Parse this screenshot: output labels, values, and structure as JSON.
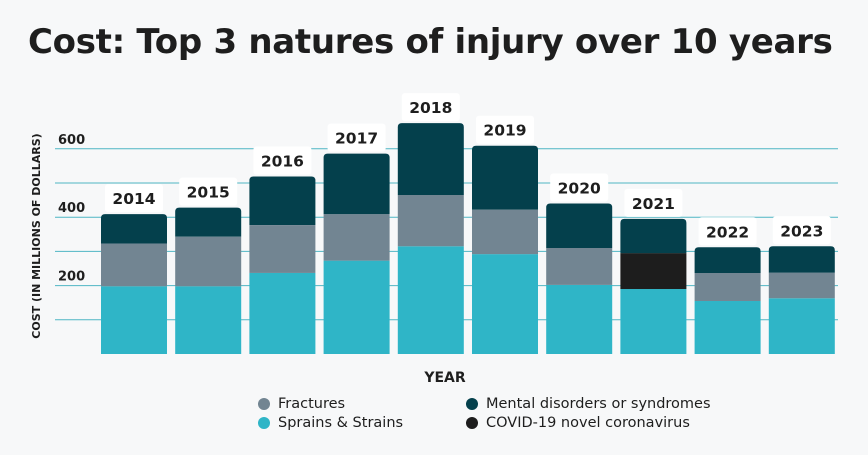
{
  "chart_data": {
    "type": "bar",
    "stacked": true,
    "title": "Cost: Top 3 natures of injury over 10 years",
    "xlabel": "YEAR",
    "ylabel": "COST (IN MILLIONS OF DOLLARS)",
    "ylim": [
      0,
      690
    ],
    "yticks": [
      200,
      400,
      600
    ],
    "grid": true,
    "legend_position": "bottom",
    "categories": [
      "2014",
      "2015",
      "2016",
      "2017",
      "2018",
      "2019",
      "2020",
      "2021",
      "2022",
      "2023"
    ],
    "series": [
      {
        "name": "Sprains & Strains",
        "color": "#2fb5c7",
        "values": [
          198,
          198,
          237,
          273,
          315,
          292,
          202,
          190,
          155,
          163
        ]
      },
      {
        "name": "Fractures",
        "color": "#728592",
        "values": [
          125,
          145,
          140,
          136,
          150,
          130,
          108,
          0,
          82,
          75
        ]
      },
      {
        "name": "Mental disorders or syndromes",
        "color": "#04404c",
        "values": [
          86,
          85,
          142,
          177,
          210,
          187,
          130,
          100,
          75,
          77
        ]
      },
      {
        "name": "COVID-19 novel coronavirus",
        "color": "#1d1d1d",
        "values": [
          0,
          0,
          0,
          0,
          0,
          0,
          0,
          105,
          0,
          0
        ]
      }
    ],
    "legend": [
      {
        "label": "Fractures",
        "color": "#728592"
      },
      {
        "label": "Mental disorders or syndromes",
        "color": "#04404c"
      },
      {
        "label": "Sprains & Strains",
        "color": "#2fb5c7"
      },
      {
        "label": "COVID-19 novel coronavirus",
        "color": "#1d1d1d"
      }
    ],
    "colors": {
      "grid": "#4fb6c4",
      "year_label_bg": "#ffffff"
    }
  }
}
